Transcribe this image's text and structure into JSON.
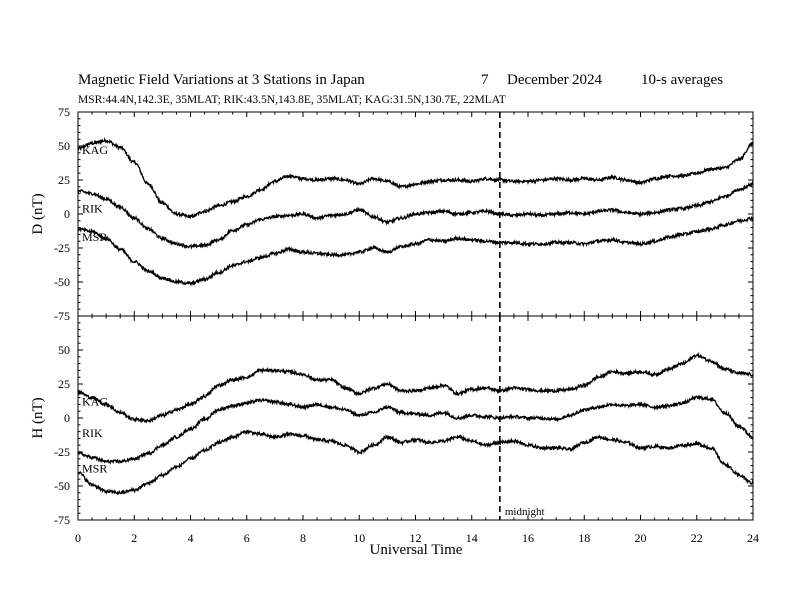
{
  "header": {
    "title": "Magnetic Field Variations at 3 Stations in Japan",
    "day": "7",
    "month": "December",
    "year": "2024",
    "averaging": "10-s averages",
    "stations": "MSR:44.4N,142.3E, 35MLAT;  RIK:43.5N,143.8E, 35MLAT;  KAG:31.5N,130.7E, 22MLAT"
  },
  "chart_data": [
    {
      "type": "line",
      "panel": "top",
      "ylabel": "D (nT)",
      "xlabel": "Universal Time",
      "xlim": [
        0,
        24
      ],
      "ylim": [
        -75,
        75
      ],
      "xticks": [
        0,
        2,
        4,
        6,
        8,
        10,
        12,
        14,
        16,
        18,
        20,
        22,
        24
      ],
      "yticks": [
        -75,
        -50,
        -25,
        0,
        25,
        50,
        75
      ],
      "x": [
        0,
        0.5,
        1,
        1.5,
        2,
        2.5,
        3,
        3.5,
        4,
        4.5,
        5,
        5.5,
        6,
        6.5,
        7,
        7.5,
        8,
        8.5,
        9,
        9.5,
        10,
        10.5,
        11,
        11.5,
        12,
        12.5,
        13,
        13.5,
        14,
        14.5,
        15,
        15.5,
        16,
        16.5,
        17,
        17.5,
        18,
        18.5,
        19,
        19.5,
        20,
        20.5,
        21,
        21.5,
        22,
        22.5,
        23,
        23.5,
        24
      ],
      "series": [
        {
          "name": "KAG",
          "label_y": 47,
          "values": [
            48,
            52,
            54,
            49,
            38,
            22,
            8,
            0,
            -2,
            2,
            6,
            9,
            13,
            18,
            24,
            28,
            26,
            25,
            26,
            25,
            22,
            26,
            24,
            20,
            22,
            24,
            25,
            25,
            24,
            26,
            25,
            24,
            24,
            25,
            26,
            25,
            26,
            25,
            27,
            25,
            23,
            26,
            28,
            28,
            30,
            33,
            34,
            40,
            52
          ]
        },
        {
          "name": "RIK",
          "label_y": 4,
          "values": [
            17,
            15,
            11,
            5,
            -3,
            -11,
            -18,
            -22,
            -24,
            -23,
            -19,
            -12,
            -8,
            -4,
            -2,
            -1,
            0,
            -3,
            -1,
            0,
            3,
            -2,
            -6,
            -3,
            0,
            1,
            2,
            0,
            1,
            2,
            0,
            -1,
            0,
            -1,
            0,
            1,
            0,
            2,
            3,
            1,
            0,
            1,
            3,
            4,
            6,
            9,
            13,
            18,
            22
          ]
        },
        {
          "name": "MSR",
          "label_y": -17,
          "values": [
            -11,
            -13,
            -18,
            -26,
            -35,
            -42,
            -47,
            -50,
            -51,
            -48,
            -43,
            -38,
            -35,
            -32,
            -29,
            -26,
            -28,
            -29,
            -30,
            -30,
            -28,
            -25,
            -28,
            -24,
            -22,
            -19,
            -20,
            -18,
            -19,
            -20,
            -21,
            -21,
            -22,
            -22,
            -21,
            -21,
            -22,
            -20,
            -19,
            -21,
            -22,
            -20,
            -17,
            -15,
            -13,
            -11,
            -8,
            -5,
            -3
          ]
        }
      ]
    },
    {
      "type": "line",
      "panel": "bottom",
      "ylabel": "H (nT)",
      "xlabel": "Universal Time",
      "xlim": [
        0,
        24
      ],
      "ylim": [
        -75,
        75
      ],
      "xticks": [
        0,
        2,
        4,
        6,
        8,
        10,
        12,
        14,
        16,
        18,
        20,
        22,
        24
      ],
      "yticks": [
        -75,
        -50,
        -25,
        0,
        25,
        50,
        75
      ],
      "x": [
        0,
        0.5,
        1,
        1.5,
        2,
        2.5,
        3,
        3.5,
        4,
        4.5,
        5,
        5.5,
        6,
        6.5,
        7,
        7.5,
        8,
        8.5,
        9,
        9.5,
        10,
        10.5,
        11,
        11.5,
        12,
        12.5,
        13,
        13.5,
        14,
        14.5,
        15,
        15.5,
        16,
        16.5,
        17,
        17.5,
        18,
        18.5,
        19,
        19.5,
        20,
        20.5,
        21,
        21.5,
        22,
        22.5,
        23,
        23.5,
        24
      ],
      "series": [
        {
          "name": "KAG",
          "label_y": 12,
          "values": [
            19,
            15,
            10,
            4,
            -1,
            -2,
            2,
            6,
            10,
            16,
            24,
            28,
            30,
            35,
            35,
            34,
            32,
            28,
            28,
            22,
            18,
            22,
            25,
            20,
            20,
            22,
            24,
            18,
            21,
            22,
            20,
            22,
            21,
            20,
            20,
            21,
            24,
            30,
            34,
            33,
            34,
            32,
            36,
            40,
            46,
            42,
            36,
            33,
            32
          ]
        },
        {
          "name": "RIK",
          "label_y": -11,
          "values": [
            -26,
            -29,
            -32,
            -32,
            -30,
            -26,
            -20,
            -14,
            -8,
            -1,
            6,
            9,
            11,
            13,
            12,
            10,
            8,
            10,
            8,
            6,
            2,
            4,
            8,
            4,
            3,
            2,
            4,
            0,
            2,
            1,
            0,
            1,
            0,
            0,
            -1,
            2,
            6,
            8,
            10,
            9,
            10,
            8,
            9,
            11,
            15,
            14,
            4,
            -6,
            -14
          ]
        },
        {
          "name": "MSR",
          "label_y": -37,
          "values": [
            -40,
            -49,
            -54,
            -55,
            -53,
            -48,
            -42,
            -36,
            -30,
            -24,
            -18,
            -14,
            -10,
            -12,
            -14,
            -12,
            -13,
            -16,
            -17,
            -20,
            -25,
            -20,
            -14,
            -18,
            -16,
            -18,
            -17,
            -14,
            -17,
            -20,
            -18,
            -17,
            -20,
            -22,
            -22,
            -23,
            -18,
            -14,
            -16,
            -18,
            -22,
            -21,
            -22,
            -20,
            -19,
            -22,
            -34,
            -42,
            -48
          ]
        }
      ]
    }
  ],
  "annotations": {
    "midnight_label": "midnight",
    "midnight_x": 15
  }
}
